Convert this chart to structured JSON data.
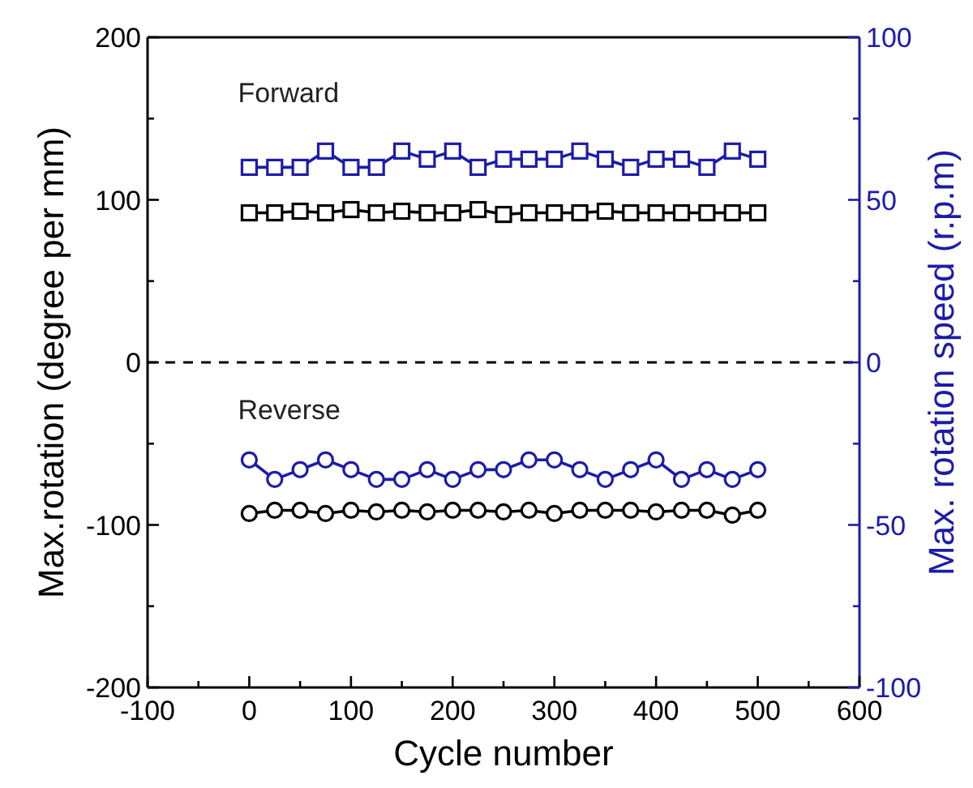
{
  "chart_data": {
    "type": "line",
    "xlabel": "Cycle number",
    "ylabel": "Max.rotation (degree per mm)",
    "y2label": "Max. rotation speed (r.p.m)",
    "x": [
      0,
      25,
      50,
      75,
      100,
      125,
      150,
      175,
      200,
      225,
      250,
      275,
      300,
      325,
      350,
      375,
      400,
      425,
      450,
      475,
      500
    ],
    "xlim": [
      -100,
      600
    ],
    "xticks": [
      -100,
      {
        "value": -50,
        "label": null
      },
      0,
      {
        "value": 50,
        "label": null
      },
      100,
      {
        "value": 150,
        "label": null
      },
      200,
      {
        "value": 250,
        "label": null
      },
      300,
      {
        "value": 350,
        "label": null
      },
      400,
      {
        "value": 450,
        "label": null
      },
      500,
      {
        "value": 550,
        "label": null
      },
      600
    ],
    "ylim": [
      -200,
      200
    ],
    "yticks": [
      -200,
      {
        "value": -150,
        "label": null
      },
      -100,
      {
        "value": -50,
        "label": null
      },
      0,
      {
        "value": 50,
        "label": null
      },
      100,
      {
        "value": 150,
        "label": null
      },
      200
    ],
    "y2lim": [
      -100,
      100
    ],
    "y2ticks": [
      -100,
      {
        "value": -75,
        "label": null
      },
      -50,
      {
        "value": -25,
        "label": null
      },
      0,
      {
        "value": 25,
        "label": null
      },
      50,
      {
        "value": 75,
        "label": null
      },
      100
    ],
    "series": [
      {
        "color": "#1c1ca8",
        "axis": "y2",
        "marker": "square",
        "values": [
          60,
          60,
          60,
          65,
          60,
          60,
          65,
          62.5,
          65,
          60,
          62.5,
          62.5,
          62.5,
          65,
          62.5,
          60,
          62.5,
          62.5,
          60,
          65,
          62.5
        ]
      },
      {
        "color": "#000000",
        "marker": "square",
        "values": [
          92,
          92,
          93,
          92,
          94,
          92,
          93,
          92,
          92,
          94,
          91,
          92,
          92,
          92,
          93,
          92,
          92,
          92,
          92,
          92,
          92
        ]
      },
      {
        "color": "#1c1ca8",
        "axis": "y2",
        "marker": "circle",
        "values": [
          -30,
          -36,
          -33,
          -30,
          -33,
          -36,
          -36,
          -33,
          -36,
          -33,
          -33,
          -30,
          -30,
          -33,
          -36,
          -33,
          -30,
          -36,
          -33,
          -36,
          -33
        ]
      },
      {
        "color": "#000000",
        "marker": "circle",
        "values": [
          -93,
          -91,
          -91,
          -93,
          -91,
          -92,
          -91,
          -92,
          -91,
          -91,
          -92,
          -91,
          -93,
          -91,
          -91,
          -91,
          -92,
          -91,
          -91,
          -94,
          -91
        ]
      }
    ],
    "ref_lines": [
      {
        "axis": "y",
        "value": 0,
        "label": null,
        "color": "#000000",
        "line_style": "dashed"
      }
    ],
    "annotations": [
      "Forward",
      "Reverse"
    ],
    "grid": false,
    "line_style": "solid"
  }
}
